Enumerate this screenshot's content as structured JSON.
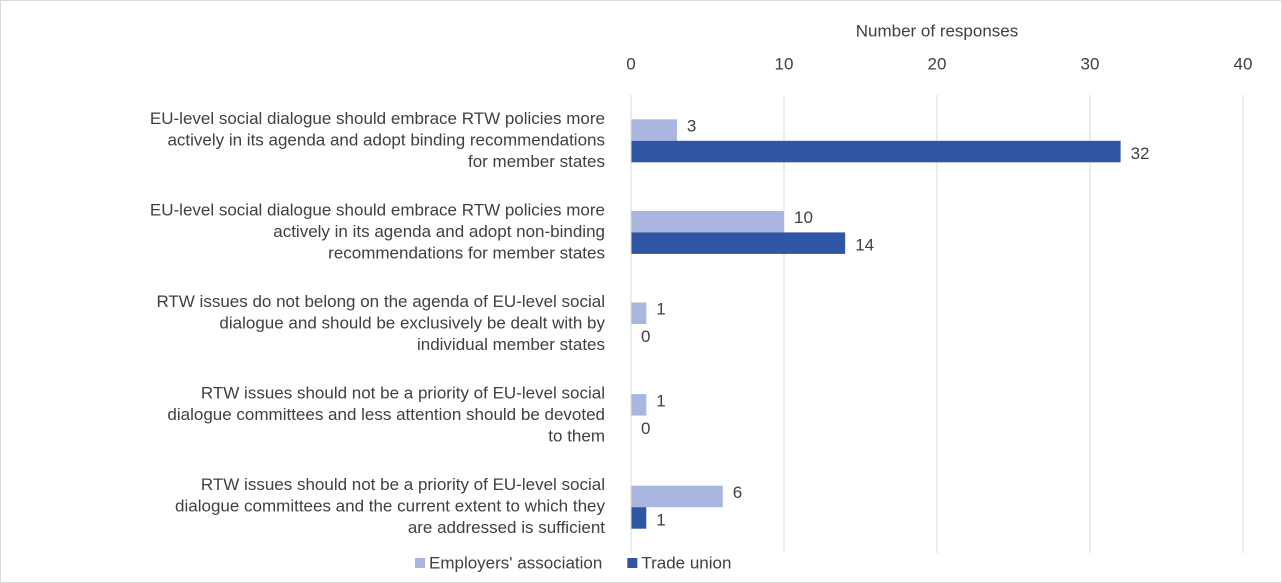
{
  "chart_data": {
    "type": "barh",
    "x_label": "Number of responses",
    "categories": [
      [
        "EU-level social dialogue should embrace RTW policies more",
        "actively in its agenda and adopt binding recommendations",
        "for  member states"
      ],
      [
        "EU-level social dialogue should embrace RTW policies more",
        "actively in its agenda and adopt non-binding",
        "recommendations for  member states"
      ],
      [
        "RTW issues do not belong on the agenda of EU-level social",
        "dialogue and should be exclusively be dealt with by",
        "individual member states"
      ],
      [
        "RTW issues should not be a priority of EU-level social",
        "dialogue committees and less attention should be devoted",
        "to them"
      ],
      [
        "RTW issues should not be a priority of EU-level social",
        "dialogue committees and the current extent to which they",
        "are addressed is sufficient"
      ]
    ],
    "series": [
      {
        "name": "Employers' association",
        "color": "#a9b7e0",
        "values": [
          3,
          10,
          1,
          1,
          6
        ]
      },
      {
        "name": "Trade union",
        "color": "#2f55a4",
        "values": [
          32,
          14,
          0,
          0,
          1
        ]
      }
    ],
    "xlim": [
      0,
      40
    ],
    "xticks": [
      0,
      10,
      20,
      30,
      40
    ],
    "grid": true,
    "legend": "bottom"
  }
}
